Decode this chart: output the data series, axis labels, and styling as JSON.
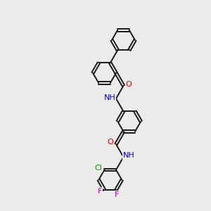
{
  "bg_color": "#ebebeb",
  "bond_color": "#1a1a1a",
  "atom_colors": {
    "O": "#e00000",
    "N": "#0000e0",
    "Cl": "#009900",
    "F": "#bb00bb"
  },
  "lw": 1.4,
  "dbo": 0.06,
  "r6": 0.55,
  "bl": 0.65,
  "fs": 7.5
}
